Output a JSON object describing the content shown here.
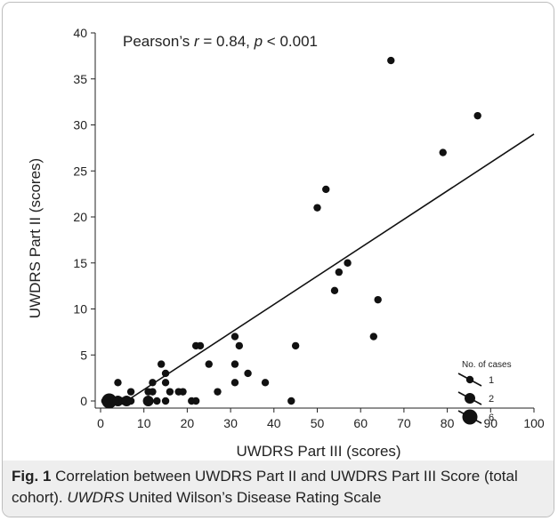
{
  "chart_data": {
    "type": "scatter",
    "title": "",
    "annotation": {
      "prefix": "Pearson’s ",
      "r_symbol": "r",
      "r_text": " = 0.84, ",
      "p_symbol": "p",
      "p_text": " < 0.001"
    },
    "xlabel": "UWDRS Part III (scores)",
    "ylabel": "UWDRS Part II (scores)",
    "xlim": [
      0,
      100
    ],
    "ylim": [
      0,
      40
    ],
    "x_ticks": [
      0,
      10,
      20,
      30,
      40,
      50,
      60,
      70,
      80,
      90,
      100
    ],
    "y_ticks": [
      0,
      5,
      10,
      15,
      20,
      25,
      30,
      35,
      40
    ],
    "grid": false,
    "marker_color": "#111111",
    "regression_line": {
      "x": [
        6,
        100
      ],
      "y": [
        0,
        29
      ]
    },
    "points": [
      {
        "x": 67,
        "y": 37,
        "n": 1
      },
      {
        "x": 87,
        "y": 31,
        "n": 1
      },
      {
        "x": 79,
        "y": 27,
        "n": 1
      },
      {
        "x": 52,
        "y": 23,
        "n": 1
      },
      {
        "x": 50,
        "y": 21,
        "n": 1
      },
      {
        "x": 57,
        "y": 15,
        "n": 1
      },
      {
        "x": 55,
        "y": 14,
        "n": 1
      },
      {
        "x": 54,
        "y": 12,
        "n": 1
      },
      {
        "x": 64,
        "y": 11,
        "n": 1
      },
      {
        "x": 63,
        "y": 7,
        "n": 1
      },
      {
        "x": 31,
        "y": 7,
        "n": 1
      },
      {
        "x": 22,
        "y": 6,
        "n": 1
      },
      {
        "x": 23,
        "y": 6,
        "n": 1
      },
      {
        "x": 32,
        "y": 6,
        "n": 1
      },
      {
        "x": 45,
        "y": 6,
        "n": 1
      },
      {
        "x": 14,
        "y": 4,
        "n": 1
      },
      {
        "x": 25,
        "y": 4,
        "n": 1
      },
      {
        "x": 31,
        "y": 4,
        "n": 1
      },
      {
        "x": 15,
        "y": 3,
        "n": 1
      },
      {
        "x": 34,
        "y": 3,
        "n": 1
      },
      {
        "x": 4,
        "y": 2,
        "n": 1
      },
      {
        "x": 12,
        "y": 2,
        "n": 1
      },
      {
        "x": 15,
        "y": 2,
        "n": 1
      },
      {
        "x": 31,
        "y": 2,
        "n": 1
      },
      {
        "x": 38,
        "y": 2,
        "n": 1
      },
      {
        "x": 7,
        "y": 1,
        "n": 1
      },
      {
        "x": 11,
        "y": 1,
        "n": 1
      },
      {
        "x": 12,
        "y": 1,
        "n": 1
      },
      {
        "x": 16,
        "y": 1,
        "n": 1
      },
      {
        "x": 18,
        "y": 1,
        "n": 1
      },
      {
        "x": 19,
        "y": 1,
        "n": 1
      },
      {
        "x": 27,
        "y": 1,
        "n": 1
      },
      {
        "x": 1,
        "y": 0,
        "n": 1
      },
      {
        "x": 2,
        "y": 0,
        "n": 6
      },
      {
        "x": 3,
        "y": 0,
        "n": 1
      },
      {
        "x": 4,
        "y": 0,
        "n": 2
      },
      {
        "x": 5,
        "y": 0,
        "n": 1
      },
      {
        "x": 6,
        "y": 0,
        "n": 2
      },
      {
        "x": 7,
        "y": 0,
        "n": 1
      },
      {
        "x": 11,
        "y": 0,
        "n": 2
      },
      {
        "x": 13,
        "y": 0,
        "n": 1
      },
      {
        "x": 15,
        "y": 0,
        "n": 1
      },
      {
        "x": 21,
        "y": 0,
        "n": 1
      },
      {
        "x": 22,
        "y": 0,
        "n": 1
      },
      {
        "x": 44,
        "y": 0,
        "n": 1
      }
    ],
    "size_legend": {
      "title": "No. of cases",
      "entries": [
        {
          "n": 1,
          "label": "1"
        },
        {
          "n": 2,
          "label": "2"
        },
        {
          "n": 6,
          "label": "6"
        }
      ]
    }
  },
  "caption": {
    "fig_label": "Fig. 1",
    "text1": " Correlation between UWDRS Part II and UWDRS Part III Score (total cohort). ",
    "abbr": "UWDRS",
    "text2": " United Wilson’s Disease Rating Scale"
  }
}
